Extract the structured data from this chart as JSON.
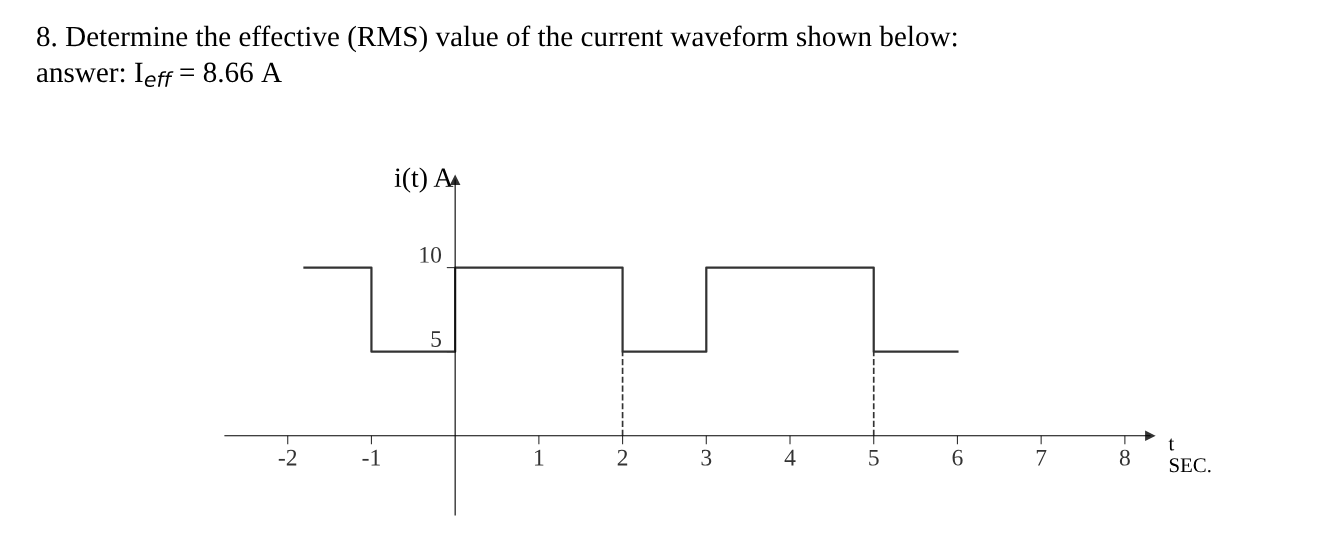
{
  "chart_data": {
    "type": "step",
    "title": "8. Determine the effective (RMS) value of the current waveform shown below:",
    "subtitle": "answer: I$_{eff}$ = 8.66 A",
    "xlabel": "t\nSEC.",
    "ylabel": "i(t) A",
    "x": [
      -1.8,
      -1,
      0,
      2,
      3,
      5,
      6
    ],
    "series": [
      {
        "color": "#333333",
        "values": [
          10,
          5,
          10,
          5,
          10,
          5,
          5
        ]
      }
    ],
    "xlim": [
      -2.75,
      8.3
    ],
    "ylim": [
      -4.7,
      15.2
    ],
    "xticks": [
      -2,
      -1,
      1,
      2,
      3,
      4,
      5,
      6,
      7,
      8
    ],
    "yticks": [
      5,
      10
    ],
    "ref_lines": [
      {
        "axis": "x",
        "value": 2,
        "line_style": "dashed",
        "color": "#333333"
      },
      {
        "axis": "x",
        "value": 5,
        "line_style": "dashed",
        "color": "#333333"
      }
    ],
    "grid": false
  }
}
